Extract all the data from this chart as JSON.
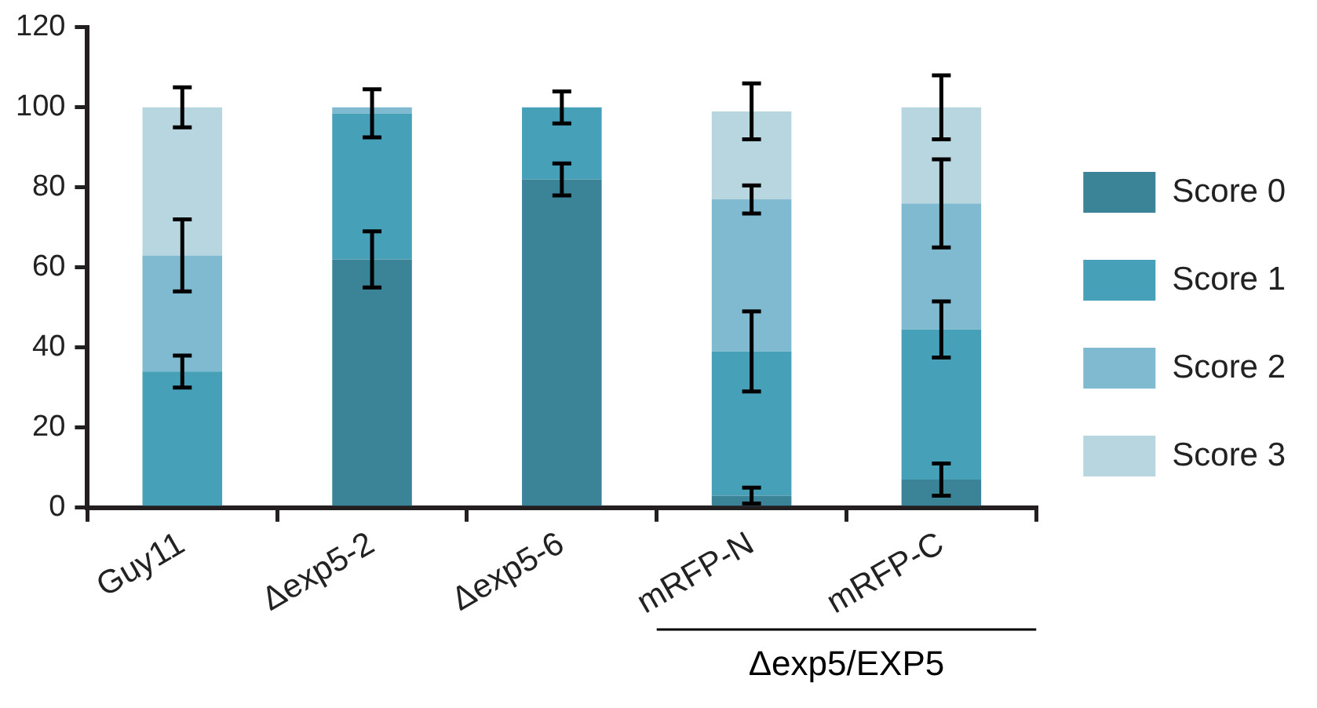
{
  "chart_data": {
    "type": "bar",
    "stacked": true,
    "categories": [
      "Guy11",
      "Δexp5-2",
      "Δexp5-6",
      "mRFP-N",
      "mRFP-C"
    ],
    "series": [
      {
        "name": "Score 0",
        "color": "#3b8497",
        "values": [
          0,
          62,
          82,
          3,
          7
        ],
        "errors": [
          null,
          7,
          4,
          2,
          4
        ]
      },
      {
        "name": "Score 1",
        "color": "#46a0b8",
        "values": [
          34,
          36.5,
          18,
          36,
          37.5
        ],
        "errors": [
          4,
          6,
          4,
          10,
          7
        ]
      },
      {
        "name": "Score 2",
        "color": "#7fbad0",
        "values": [
          29,
          1.5,
          0,
          38,
          31.5
        ],
        "errors": [
          9,
          null,
          null,
          3.5,
          11
        ]
      },
      {
        "name": "Score 3",
        "color": "#b7d6e0",
        "values": [
          37,
          0,
          0,
          22,
          24
        ],
        "errors": [
          5,
          null,
          null,
          7,
          8
        ]
      }
    ],
    "ylim": [
      0,
      120
    ],
    "yticks": [
      0,
      20,
      40,
      60,
      80,
      100,
      120
    ],
    "grid": false,
    "legend": "right",
    "annotations": [
      "Δexp5/EXP5"
    ]
  }
}
